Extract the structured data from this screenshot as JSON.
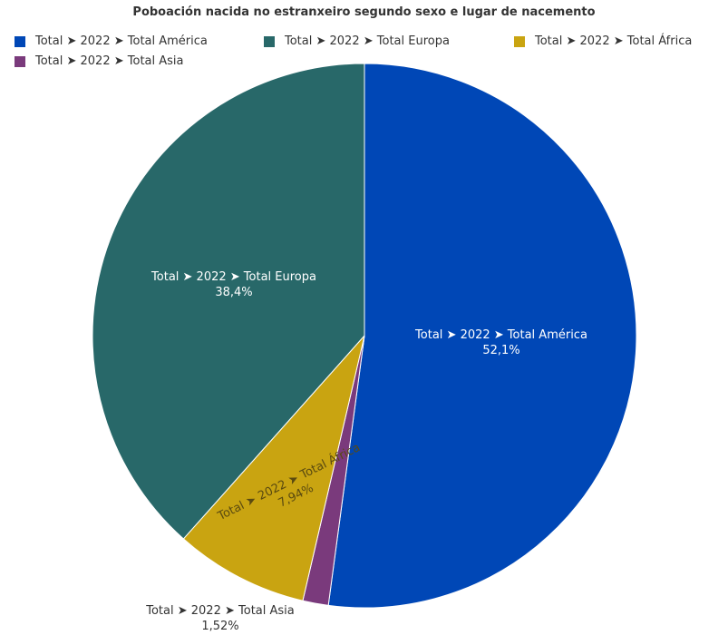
{
  "chart_data": {
    "type": "pie",
    "title": "Poboación nacida no estranxeiro segundo sexo e lugar de nacemento",
    "legend_position": "top-left",
    "slices": [
      {
        "name": "Total ➤ 2022 ➤ Total América",
        "label_line1": "Total ➤ 2022 ➤ Total América",
        "percent_label": "52,1%",
        "value": 52.1,
        "color": "#0047b6",
        "label_color": "#ffffff"
      },
      {
        "name": "Total ➤ 2022 ➤ Total Asia",
        "label_line1": "Total ➤ 2022 ➤ Total Asia",
        "percent_label": "1,52%",
        "value": 1.52,
        "color": "#7a3a7c",
        "label_color": "#333333"
      },
      {
        "name": "Total ➤ 2022 ➤ Total África",
        "label_line1": "Total ➤ 2022 ➤ Total África",
        "percent_label": "7,94%",
        "value": 7.94,
        "color": "#c9a411",
        "label_color": "#5a4a10"
      },
      {
        "name": "Total ➤ 2022 ➤ Total Europa",
        "label_line1": "Total ➤ 2022 ➤ Total Europa",
        "percent_label": "38,4%",
        "value": 38.4,
        "color": "#286869",
        "label_color": "#ffffff"
      }
    ],
    "legend": [
      {
        "label": "Total ➤ 2022 ➤ Total América",
        "color": "#0047b6"
      },
      {
        "label": "Total ➤ 2022 ➤ Total Europa",
        "color": "#286869"
      },
      {
        "label": "Total ➤ 2022 ➤ Total África",
        "color": "#c9a411"
      },
      {
        "label": "Total ➤ 2022 ➤ Total Asia",
        "color": "#7a3a7c"
      }
    ]
  }
}
